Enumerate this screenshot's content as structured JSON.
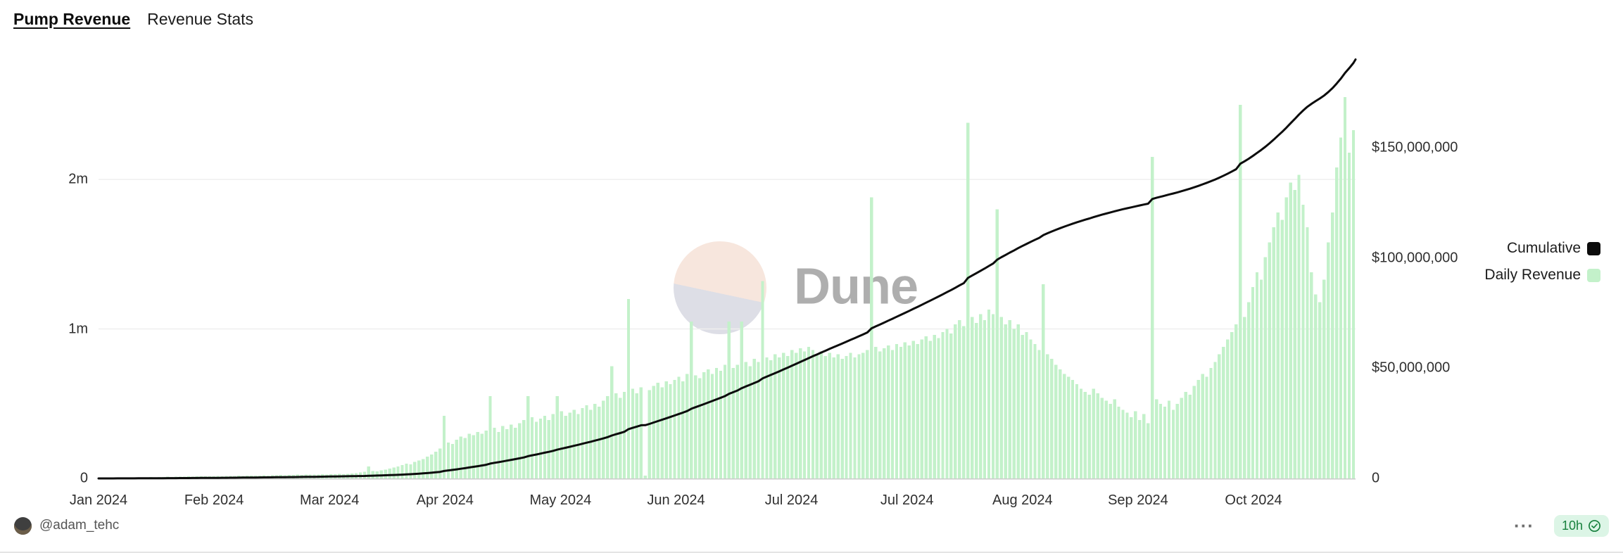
{
  "header": {
    "title": "Pump Revenue",
    "subtitle": "Revenue Stats"
  },
  "watermark": {
    "text": "Dune"
  },
  "legend": [
    {
      "label": "Cumulative",
      "color": "#0c0c0c"
    },
    {
      "label": "Daily Revenue",
      "color": "#c3f1ca"
    }
  ],
  "colors": {
    "bar_green": "#c3f1ca",
    "line_black": "#0c0c0c",
    "badge_bg": "#dcf5e6",
    "badge_text": "#17803d",
    "gridline": "#efefef",
    "axis_line": "#cbcbcb"
  },
  "footer": {
    "author": "@adam_tehc",
    "more_label": "···",
    "age": "10h",
    "badge_icon": "check-circle-icon"
  },
  "chart_data": {
    "type": "bar",
    "combo": "bar series on left axis + cumulative line on right axis",
    "title": "",
    "x_ticks": [
      "Jan 2024",
      "Feb 2024",
      "Mar 2024",
      "Apr 2024",
      "May 2024",
      "Jun 2024",
      "Jul 2024",
      "Jul 2024",
      "Aug 2024",
      "Sep 2024",
      "Oct 2024"
    ],
    "left_axis": {
      "unit": "millions USD per day",
      "ticks": [
        {
          "label": "0",
          "value": 0
        },
        {
          "label": "1m",
          "value": 1
        },
        {
          "label": "2m",
          "value": 2
        }
      ],
      "ylim": [
        0,
        2.79
      ]
    },
    "right_axis": {
      "unit": "USD cumulative",
      "ticks": [
        {
          "label": "0",
          "value": 0
        },
        {
          "label": "$50,000,000",
          "value": 50
        },
        {
          "label": "$100,000,000",
          "value": 100
        },
        {
          "label": "$150,000,000",
          "value": 150
        }
      ],
      "ylim_millions": [
        0,
        189
      ]
    },
    "series": [
      {
        "name": "Daily Revenue",
        "type": "bar",
        "axis": "left",
        "color": "#c3f1ca",
        "unit": "millions USD",
        "months": [
          {
            "m": "Jan 2024",
            "values": [
              0.003,
              0.004,
              0.003,
              0.005,
              0.004,
              0.006,
              0.005,
              0.007,
              0.006,
              0.008,
              0.007,
              0.008,
              0.009,
              0.008,
              0.01,
              0.009,
              0.011,
              0.01,
              0.012,
              0.011,
              0.012,
              0.013,
              0.012,
              0.014,
              0.013,
              0.015,
              0.014,
              0.015,
              0.016,
              0.015,
              0.016
            ]
          },
          {
            "m": "Feb 2024",
            "values": [
              0.016,
              0.017,
              0.018,
              0.017,
              0.019,
              0.018,
              0.02,
              0.019,
              0.021,
              0.02,
              0.022,
              0.021,
              0.023,
              0.022,
              0.024,
              0.023,
              0.025,
              0.024,
              0.026,
              0.025,
              0.027,
              0.026,
              0.028,
              0.027,
              0.029,
              0.028,
              0.03,
              0.029,
              0.031
            ]
          },
          {
            "m": "Mar 2024",
            "values": [
              0.033,
              0.036,
              0.04,
              0.044,
              0.08,
              0.05,
              0.048,
              0.055,
              0.06,
              0.066,
              0.072,
              0.08,
              0.09,
              0.1,
              0.095,
              0.11,
              0.12,
              0.13,
              0.145,
              0.16,
              0.18,
              0.2,
              0.42,
              0.24,
              0.23,
              0.26,
              0.28,
              0.27,
              0.3,
              0.29,
              0.31
            ]
          },
          {
            "m": "Apr 2024",
            "values": [
              0.3,
              0.32,
              0.55,
              0.34,
              0.31,
              0.35,
              0.33,
              0.36,
              0.34,
              0.37,
              0.39,
              0.55,
              0.41,
              0.38,
              0.4,
              0.42,
              0.39,
              0.43,
              0.55,
              0.45,
              0.42,
              0.44,
              0.46,
              0.43,
              0.47,
              0.49,
              0.46,
              0.5,
              0.48,
              0.52
            ]
          },
          {
            "m": "May 2024",
            "values": [
              0.55,
              0.75,
              0.57,
              0.54,
              0.58,
              1.2,
              0.6,
              0.57,
              0.61,
              0.02,
              0.59,
              0.62,
              0.64,
              0.61,
              0.65,
              0.63,
              0.66,
              0.68,
              0.65,
              0.7,
              1.05,
              0.69,
              0.67,
              0.71,
              0.73,
              0.7,
              0.74,
              0.72,
              0.76,
              1.05,
              0.74
            ]
          },
          {
            "m": "Jun 2024",
            "values": [
              0.76,
              1.05,
              0.78,
              0.75,
              0.8,
              0.78,
              1.32,
              0.81,
              0.79,
              0.83,
              0.81,
              0.84,
              0.82,
              0.86,
              0.84,
              0.87,
              0.85,
              0.88,
              0.86,
              0.83,
              0.85,
              0.82,
              0.84,
              0.81,
              0.83,
              0.8,
              0.82,
              0.84,
              0.81,
              0.83
            ]
          },
          {
            "m": "Jul 2024",
            "values": [
              0.84,
              0.86,
              1.88,
              0.88,
              0.85,
              0.87,
              0.89,
              0.86,
              0.9,
              0.88,
              0.91,
              0.89,
              0.92,
              0.9,
              0.93,
              0.95,
              0.92,
              0.96,
              0.94,
              0.98,
              1.0,
              0.97,
              1.03,
              1.06,
              1.02,
              2.38,
              1.08,
              1.04,
              1.1,
              1.06,
              1.13
            ]
          },
          {
            "m": "Aug 2024",
            "values": [
              1.1,
              1.8,
              1.08,
              1.03,
              1.06,
              1.0,
              1.03,
              0.96,
              0.98,
              0.93,
              0.9,
              0.86,
              1.3,
              0.83,
              0.8,
              0.76,
              0.73,
              0.7,
              0.68,
              0.66,
              0.63,
              0.6,
              0.58,
              0.56,
              0.6,
              0.57,
              0.54,
              0.52,
              0.5,
              0.53,
              0.48
            ]
          },
          {
            "m": "Sep 2024",
            "values": [
              0.46,
              0.44,
              0.41,
              0.45,
              0.39,
              0.43,
              0.37,
              2.15,
              0.53,
              0.5,
              0.48,
              0.52,
              0.46,
              0.5,
              0.54,
              0.58,
              0.56,
              0.62,
              0.66,
              0.7,
              0.68,
              0.74,
              0.78,
              0.83,
              0.88,
              0.93,
              0.98,
              1.03,
              2.5,
              1.08
            ]
          },
          {
            "m": "Oct 2024",
            "values": [
              1.18,
              1.28,
              1.38,
              1.33,
              1.48,
              1.58,
              1.68,
              1.78,
              1.73,
              1.88,
              1.98,
              1.93,
              2.03,
              1.83,
              1.68,
              1.38,
              1.23,
              1.18,
              1.33,
              1.58,
              1.78,
              2.08,
              2.28,
              2.55,
              2.18,
              2.33
            ]
          }
        ]
      },
      {
        "name": "Cumulative",
        "type": "line",
        "axis": "right",
        "color": "#0c0c0c",
        "note": "running total of Daily Revenue in USD, ending near $188,000,000"
      }
    ],
    "grid": "faint horizontal gridlines at left-axis 1m and 2m",
    "legend_position": "right, outside plot"
  }
}
